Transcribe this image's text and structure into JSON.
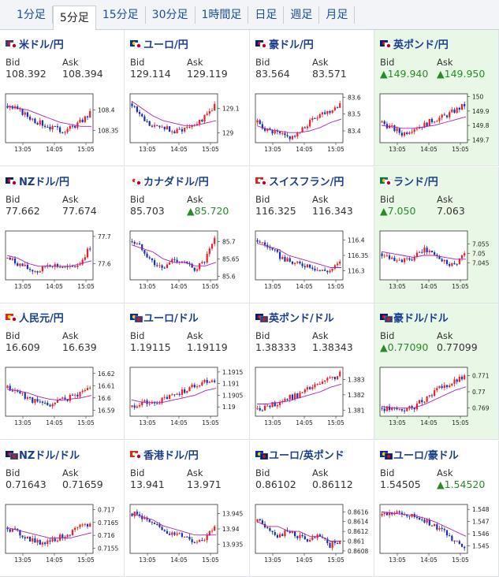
{
  "tabs": [
    "1分足",
    "5分足",
    "15分足",
    "30分足",
    "1時間足",
    "日足",
    "週足",
    "月足"
  ],
  "active_tab": "5分足",
  "labels": {
    "bid": "Bid",
    "ask": "Ask"
  },
  "colors": {
    "up": "#e8202a",
    "down": "#1a2fb5",
    "ma": "#b020b0",
    "highlight": "#e9f8e6",
    "title": "#1a3e8c"
  },
  "x_ticks": [
    "13:05",
    "14:05",
    "15:05"
  ],
  "pairs": [
    {
      "name": "米ドル/円",
      "flag": "us-jp-flag-icon",
      "bid": "108.392",
      "ask": "108.394",
      "bid_up": false,
      "ask_up": false,
      "highlight": false,
      "chart_data": {
        "type": "candlestick",
        "ylim": [
          108.32,
          108.44
        ],
        "yticks": [
          "108.4",
          "108.35"
        ],
        "ytick_values": [
          108.4,
          108.35
        ],
        "trend": [
          108.41,
          108.4,
          108.385,
          108.37,
          108.36,
          108.35,
          108.355,
          108.37,
          108.392
        ],
        "ma": [
          108.41,
          108.405,
          108.4,
          108.39,
          108.38,
          108.37,
          108.365,
          108.36,
          108.36
        ]
      }
    },
    {
      "name": "ユーロ/円",
      "flag": "eu-jp-flag-icon",
      "bid": "129.114",
      "ask": "129.119",
      "bid_up": false,
      "ask_up": false,
      "highlight": false,
      "chart_data": {
        "type": "candlestick",
        "ylim": [
          128.96,
          129.16
        ],
        "yticks": [
          "129.1",
          "129"
        ],
        "ytick_values": [
          129.1,
          129.0
        ],
        "trend": [
          129.12,
          129.06,
          129.02,
          129.03,
          129.0,
          129.02,
          129.04,
          129.06,
          129.114
        ],
        "ma": [
          129.13,
          129.1,
          129.07,
          129.05,
          129.04,
          129.03,
          129.03,
          129.04,
          129.05
        ]
      }
    },
    {
      "name": "豪ドル/円",
      "flag": "au-jp-flag-icon",
      "bid": "83.564",
      "ask": "83.571",
      "bid_up": false,
      "ask_up": false,
      "highlight": false,
      "chart_data": {
        "type": "candlestick",
        "ylim": [
          83.33,
          83.62
        ],
        "yticks": [
          "83.6",
          "83.5",
          "83.4"
        ],
        "ytick_values": [
          83.6,
          83.5,
          83.4
        ],
        "trend": [
          83.45,
          83.4,
          83.38,
          83.36,
          83.38,
          83.45,
          83.5,
          83.52,
          83.564
        ],
        "ma": [
          83.43,
          83.41,
          83.4,
          83.39,
          83.39,
          83.4,
          83.42,
          83.45,
          83.47
        ]
      }
    },
    {
      "name": "英ポンド/円",
      "flag": "gb-jp-flag-icon",
      "bid": "▲149.940",
      "ask": "▲149.950",
      "bid_up": true,
      "ask_up": true,
      "highlight": true,
      "chart_data": {
        "type": "candlestick",
        "ylim": [
          149.68,
          150.02
        ],
        "yticks": [
          "150",
          "149.9",
          "149.8",
          "149.7"
        ],
        "ytick_values": [
          150.0,
          149.9,
          149.8,
          149.7
        ],
        "trend": [
          149.82,
          149.78,
          149.74,
          149.78,
          149.8,
          149.84,
          149.86,
          149.9,
          149.94
        ],
        "ma": [
          149.8,
          149.79,
          149.78,
          149.78,
          149.79,
          149.8,
          149.82,
          149.84,
          149.86
        ]
      }
    },
    {
      "name": "NZドル/円",
      "flag": "nz-jp-flag-icon",
      "bid": "77.662",
      "ask": "77.674",
      "bid_up": false,
      "ask_up": false,
      "highlight": false,
      "chart_data": {
        "type": "candlestick",
        "ylim": [
          77.54,
          77.72
        ],
        "yticks": [
          "77.7",
          "77.6"
        ],
        "ytick_values": [
          77.7,
          77.6
        ],
        "trend": [
          77.62,
          77.6,
          77.58,
          77.57,
          77.6,
          77.59,
          77.58,
          77.6,
          77.662
        ],
        "ma": [
          77.63,
          77.62,
          77.6,
          77.59,
          77.59,
          77.59,
          77.59,
          77.6,
          77.61
        ]
      }
    },
    {
      "name": "カナダドル/円",
      "flag": "ca-jp-flag-icon",
      "bid": "85.703",
      "ask": "▲85.720",
      "bid_up": false,
      "ask_up": true,
      "highlight": false,
      "chart_data": {
        "type": "candlestick",
        "ylim": [
          85.59,
          85.73
        ],
        "yticks": [
          "85.7",
          "85.65",
          "85.6"
        ],
        "ytick_values": [
          85.7,
          85.65,
          85.6
        ],
        "trend": [
          85.7,
          85.68,
          85.64,
          85.62,
          85.65,
          85.64,
          85.62,
          85.64,
          85.703
        ],
        "ma": [
          85.69,
          85.68,
          85.67,
          85.65,
          85.64,
          85.64,
          85.63,
          85.63,
          85.64
        ]
      }
    },
    {
      "name": "スイスフラン/円",
      "flag": "ch-jp-flag-icon",
      "bid": "116.325",
      "ask": "116.343",
      "bid_up": false,
      "ask_up": false,
      "highlight": false,
      "chart_data": {
        "type": "candlestick",
        "ylim": [
          116.27,
          116.43
        ],
        "yticks": [
          "116.4",
          "116.35",
          "116.3"
        ],
        "ytick_values": [
          116.4,
          116.35,
          116.3
        ],
        "trend": [
          116.4,
          116.38,
          116.35,
          116.33,
          116.32,
          116.32,
          116.3,
          116.3,
          116.325
        ],
        "ma": [
          116.39,
          116.38,
          116.37,
          116.35,
          116.34,
          116.33,
          116.32,
          116.31,
          116.31
        ]
      }
    },
    {
      "name": "ランド/円",
      "flag": "za-jp-flag-icon",
      "bid": "▲7.050",
      "ask": "7.063",
      "bid_up": true,
      "ask_up": false,
      "highlight": true,
      "chart_data": {
        "type": "candlestick",
        "ylim": [
          7.036,
          7.062
        ],
        "yticks": [
          "7.055",
          "7.05",
          "7.045"
        ],
        "ytick_values": [
          7.055,
          7.05,
          7.045
        ],
        "trend": [
          7.05,
          7.048,
          7.046,
          7.047,
          7.052,
          7.05,
          7.046,
          7.044,
          7.05
        ],
        "ma": [
          7.051,
          7.05,
          7.049,
          7.048,
          7.049,
          7.049,
          7.048,
          7.047,
          7.047
        ]
      }
    },
    {
      "name": "人民元/円",
      "flag": "cn-jp-flag-icon",
      "bid": "16.609",
      "ask": "16.639",
      "bid_up": false,
      "ask_up": false,
      "highlight": false,
      "chart_data": {
        "type": "candlestick",
        "ylim": [
          16.585,
          16.625
        ],
        "yticks": [
          "16.62",
          "16.61",
          "16.6",
          "16.59"
        ],
        "ytick_values": [
          16.62,
          16.61,
          16.6,
          16.59
        ],
        "trend": [
          16.608,
          16.605,
          16.6,
          16.596,
          16.594,
          16.598,
          16.6,
          16.604,
          16.609
        ],
        "ma": [
          16.607,
          16.606,
          16.604,
          16.601,
          16.599,
          16.598,
          16.599,
          16.6,
          16.602
        ]
      }
    },
    {
      "name": "ユーロ/ドル",
      "flag": "eu-us-flag-icon",
      "bid": "1.19115",
      "ask": "1.19119",
      "bid_up": false,
      "ask_up": false,
      "highlight": false,
      "chart_data": {
        "type": "candlestick",
        "ylim": [
          1.1896,
          1.1917
        ],
        "yticks": [
          "1.1915",
          "1.191",
          "1.1905",
          "1.19"
        ],
        "ytick_values": [
          1.1915,
          1.191,
          1.1905,
          1.19
        ],
        "trend": [
          1.19,
          1.1902,
          1.1901,
          1.1903,
          1.1905,
          1.1907,
          1.1909,
          1.1911,
          1.19115
        ],
        "ma": [
          1.1903,
          1.1902,
          1.1902,
          1.1902,
          1.1903,
          1.1904,
          1.1905,
          1.1907,
          1.1908
        ]
      }
    },
    {
      "name": "英ポンド/ドル",
      "flag": "gb-us-flag-icon",
      "bid": "1.38333",
      "ask": "1.38343",
      "bid_up": false,
      "ask_up": false,
      "highlight": false,
      "chart_data": {
        "type": "candlestick",
        "ylim": [
          1.3806,
          1.3838
        ],
        "yticks": [
          "1.383",
          "1.382",
          "1.381"
        ],
        "ytick_values": [
          1.383,
          1.382,
          1.381
        ],
        "trend": [
          1.3811,
          1.3812,
          1.3815,
          1.3818,
          1.382,
          1.3824,
          1.3827,
          1.383,
          1.38333
        ],
        "ma": [
          1.3814,
          1.3814,
          1.3815,
          1.3816,
          1.3818,
          1.382,
          1.3822,
          1.3825,
          1.3827
        ]
      }
    },
    {
      "name": "豪ドル/ドル",
      "flag": "au-us-flag-icon",
      "bid": "▲0.77090",
      "ask": "0.77099",
      "bid_up": true,
      "ask_up": false,
      "highlight": true,
      "chart_data": {
        "type": "candlestick",
        "ylim": [
          0.7685,
          0.7715
        ],
        "yticks": [
          "0.771",
          "0.77",
          "0.769"
        ],
        "ytick_values": [
          0.771,
          0.77,
          0.769
        ],
        "trend": [
          0.769,
          0.7689,
          0.7689,
          0.769,
          0.7695,
          0.77,
          0.7703,
          0.7706,
          0.7709
        ],
        "ma": [
          0.7691,
          0.769,
          0.769,
          0.769,
          0.7692,
          0.7695,
          0.7698,
          0.7701,
          0.7703
        ]
      }
    },
    {
      "name": "NZドル/ドル",
      "flag": "nz-us-flag-icon",
      "bid": "0.71643",
      "ask": "0.71659",
      "bid_up": false,
      "ask_up": false,
      "highlight": false,
      "chart_data": {
        "type": "candlestick",
        "ylim": [
          0.7153,
          0.7172
        ],
        "yticks": [
          "0.717",
          "0.7165",
          "0.716",
          "0.7155"
        ],
        "ytick_values": [
          0.717,
          0.7165,
          0.716,
          0.7155
        ],
        "trend": [
          0.7163,
          0.7161,
          0.7159,
          0.7157,
          0.7158,
          0.7159,
          0.7161,
          0.7163,
          0.71643
        ],
        "ma": [
          0.7163,
          0.7162,
          0.7161,
          0.716,
          0.7159,
          0.7159,
          0.7159,
          0.716,
          0.7161
        ]
      }
    },
    {
      "name": "香港ドル/円",
      "flag": "hk-jp-flag-icon",
      "bid": "13.941",
      "ask": "13.971",
      "bid_up": false,
      "ask_up": false,
      "highlight": false,
      "chart_data": {
        "type": "candlestick",
        "ylim": [
          13.932,
          13.948
        ],
        "yticks": [
          "13.945",
          "13.94",
          "13.935"
        ],
        "ytick_values": [
          13.945,
          13.94,
          13.935
        ],
        "trend": [
          13.945,
          13.944,
          13.941,
          13.94,
          13.938,
          13.938,
          13.936,
          13.937,
          13.941
        ],
        "ma": [
          13.945,
          13.944,
          13.943,
          13.941,
          13.94,
          13.939,
          13.938,
          13.938,
          13.938
        ]
      }
    },
    {
      "name": "ユーロ/英ポンド",
      "flag": "eu-gb-flag-icon",
      "bid": "0.86102",
      "ask": "0.86112",
      "bid_up": false,
      "ask_up": false,
      "highlight": false,
      "chart_data": {
        "type": "candlestick",
        "ylim": [
          0.86075,
          0.86175
        ],
        "yticks": [
          "0.8616",
          "0.8614",
          "0.8612",
          "0.861",
          "0.8608"
        ],
        "ytick_values": [
          0.8616,
          0.8614,
          0.8612,
          0.861,
          0.8608
        ],
        "trend": [
          0.8614,
          0.8613,
          0.8611,
          0.8612,
          0.8611,
          0.861,
          0.8611,
          0.8609,
          0.86102
        ],
        "ma": [
          0.8614,
          0.8613,
          0.8613,
          0.8612,
          0.8612,
          0.8611,
          0.8611,
          0.861,
          0.861
        ]
      }
    },
    {
      "name": "ユーロ/豪ドル",
      "flag": "eu-au-flag-icon",
      "bid": "1.54505",
      "ask": "▲1.54520",
      "bid_up": false,
      "ask_up": true,
      "highlight": false,
      "chart_data": {
        "type": "candlestick",
        "ylim": [
          1.5444,
          1.5484
        ],
        "yticks": [
          "1.548",
          "1.547",
          "1.546",
          "1.545"
        ],
        "ytick_values": [
          1.548,
          1.547,
          1.546,
          1.545
        ],
        "trend": [
          1.5475,
          1.5477,
          1.5476,
          1.5474,
          1.5472,
          1.5466,
          1.5462,
          1.5455,
          1.54505
        ],
        "ma": [
          1.5478,
          1.5477,
          1.5476,
          1.5475,
          1.5473,
          1.547,
          1.5466,
          1.5462,
          1.5458
        ]
      }
    }
  ]
}
